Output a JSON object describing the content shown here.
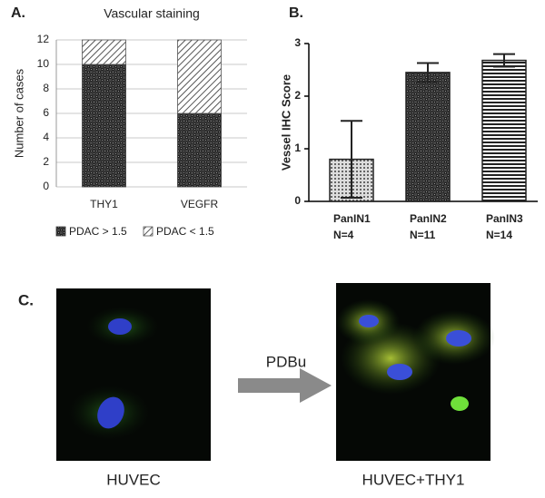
{
  "chart_data": [
    {
      "type": "stacked_bar",
      "panel_label": "A.",
      "title": "Vascular staining",
      "y_label": "Number of cases",
      "categories": [
        "THY1",
        "VEGFR"
      ],
      "series": [
        {
          "name": "PDAC > 1.5",
          "color": "#3a3a3a",
          "pattern": "checker",
          "values": [
            10,
            6
          ]
        },
        {
          "name": "PDAC < 1.5",
          "color": "#555555",
          "pattern": "diagonal",
          "values": [
            2,
            6
          ]
        }
      ],
      "ylim": [
        0,
        12
      ],
      "yticks": [
        0,
        2,
        4,
        6,
        8,
        10,
        12
      ],
      "grid": true,
      "legend": "bottom"
    },
    {
      "type": "error_bar",
      "panel_label": "B.",
      "y_label": "Vessel IHC Score",
      "categories": [
        "PanIN1",
        "PanIN2",
        "PanIN3"
      ],
      "sample_sizes": [
        "N=4",
        "N=11",
        "N=14"
      ],
      "values": [
        0.8,
        2.45,
        2.68
      ],
      "errors": [
        0.73,
        0.18,
        0.12
      ],
      "patterns": [
        "dots",
        "checker",
        "stripes"
      ],
      "color": "#222222",
      "ylim": [
        0,
        3
      ],
      "yticks": [
        0,
        1,
        2,
        3
      ],
      "grid": false
    }
  ],
  "panel_c": {
    "label": "C.",
    "left_caption": "HUVEC",
    "treatment": "PDBu",
    "right_caption": "HUVEC+THY1"
  }
}
